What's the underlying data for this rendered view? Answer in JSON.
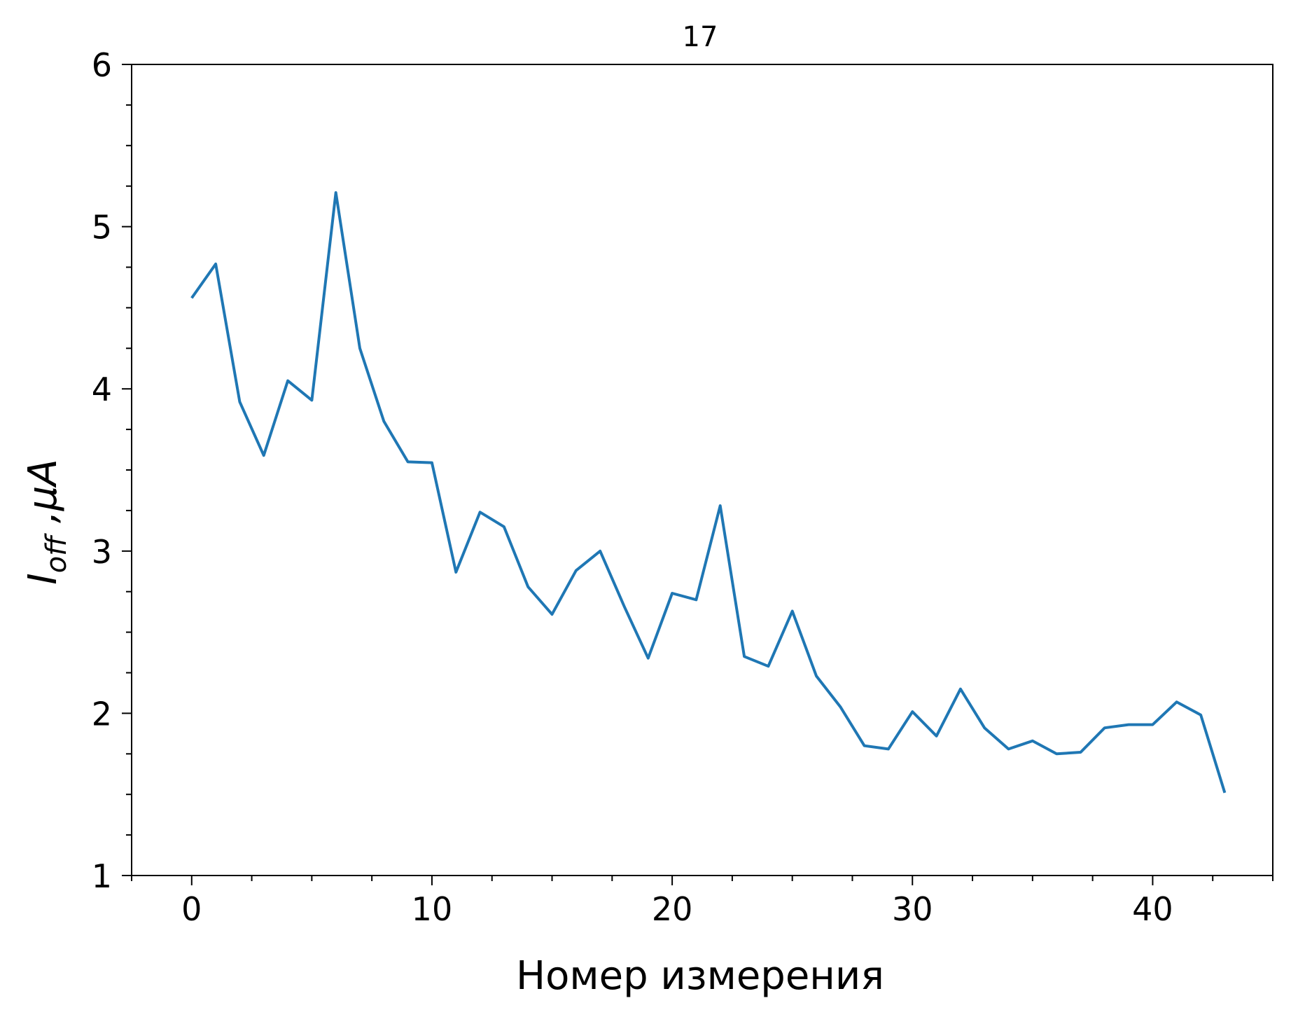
{
  "chart_data": {
    "type": "line",
    "title": "17",
    "xlabel": "Номер измерения",
    "ylabel": {
      "main": "I",
      "sub": "off",
      "unit": " ,μA"
    },
    "xlim": [
      -2.5,
      45
    ],
    "ylim": [
      1,
      6
    ],
    "x_ticks": [
      0,
      10,
      20,
      30,
      40
    ],
    "x_minor_ticks": [
      -2.5,
      0,
      2.5,
      5,
      7.5,
      10,
      12.5,
      15,
      17.5,
      20,
      22.5,
      25,
      27.5,
      30,
      32.5,
      35,
      37.5,
      40,
      42.5,
      45
    ],
    "y_ticks": [
      1,
      2,
      3,
      4,
      5,
      6
    ],
    "y_minor_ticks": [
      1.25,
      1.5,
      1.75,
      2.25,
      2.5,
      2.75,
      3.25,
      3.5,
      3.75,
      4.25,
      4.5,
      4.75,
      5.25,
      5.5,
      5.75
    ],
    "grid": false,
    "series": [
      {
        "color": "#1f77b4",
        "x": [
          0,
          1,
          2,
          3,
          4,
          5,
          6,
          7,
          8,
          9,
          10,
          11,
          12,
          13,
          14,
          15,
          16,
          17,
          18,
          19,
          20,
          21,
          22,
          23,
          24,
          25,
          26,
          27,
          28,
          29,
          30,
          31,
          32,
          33,
          34,
          35,
          36,
          37,
          38,
          39,
          40,
          41,
          42,
          43
        ],
        "values": [
          4.56,
          4.77,
          3.92,
          3.59,
          4.05,
          3.93,
          5.21,
          4.25,
          3.8,
          3.55,
          3.545,
          2.87,
          3.24,
          3.15,
          2.78,
          2.61,
          2.88,
          3.0,
          2.66,
          2.34,
          2.74,
          2.7,
          3.28,
          2.35,
          2.29,
          2.63,
          2.23,
          2.04,
          1.8,
          1.78,
          2.01,
          1.86,
          2.15,
          1.91,
          1.78,
          1.83,
          1.75,
          1.76,
          1.91,
          1.93,
          1.93,
          2.07,
          1.99,
          1.51
        ]
      }
    ]
  }
}
